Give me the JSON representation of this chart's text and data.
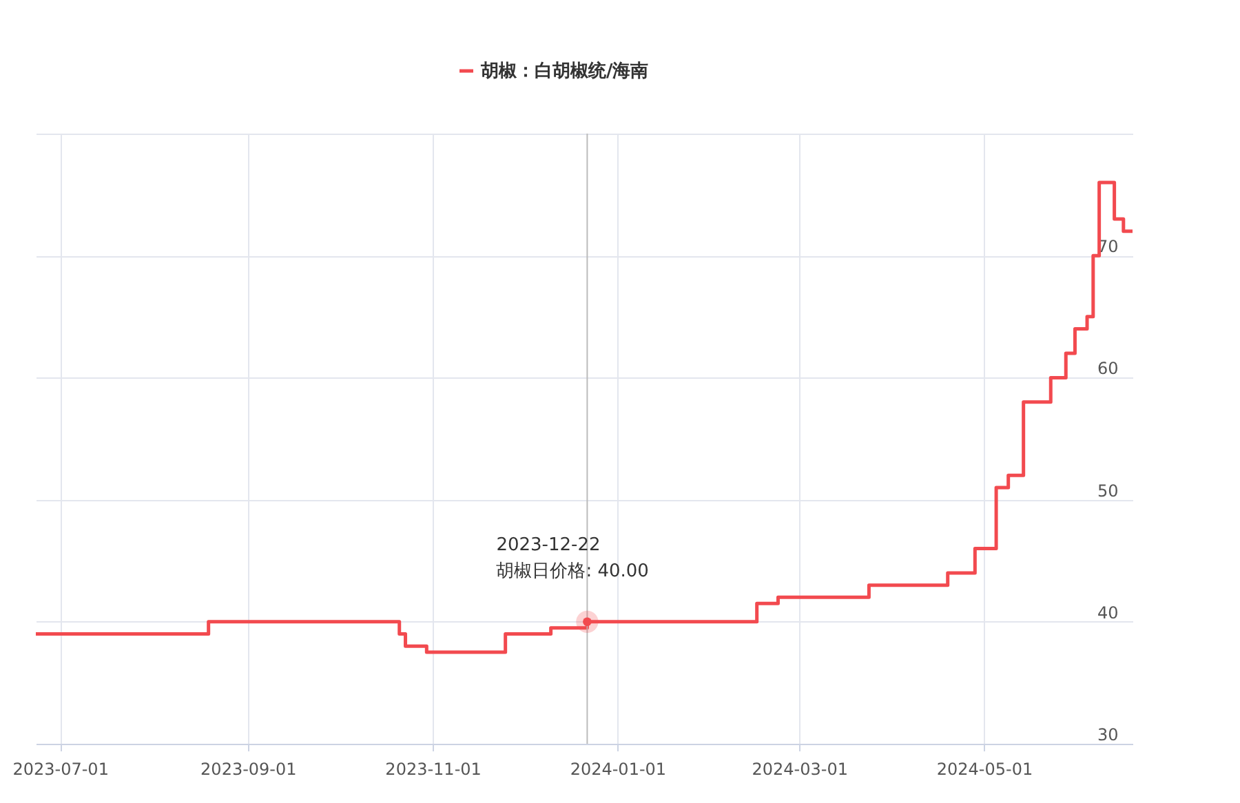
{
  "chart_data": {
    "type": "step",
    "x": [
      "2023-06-23",
      "2023-08-19",
      "2023-10-21",
      "2023-10-23",
      "2023-10-30",
      "2023-11-25",
      "2023-12-10",
      "2023-12-22",
      "2024-02-16",
      "2024-02-23",
      "2024-03-24",
      "2024-04-19",
      "2024-04-28",
      "2024-05-05",
      "2024-05-09",
      "2024-05-14",
      "2024-05-23",
      "2024-05-28",
      "2024-05-31",
      "2024-06-04",
      "2024-06-06",
      "2024-06-08",
      "2024-06-13",
      "2024-06-16",
      "2024-06-19"
    ],
    "series": [
      {
        "name": "胡椒：白胡椒统/海南",
        "color": "#f24a4f",
        "values": [
          39,
          40,
          39,
          38,
          37.5,
          39,
          39.5,
          40,
          41.5,
          42,
          43,
          44,
          46,
          51,
          52,
          58,
          60,
          62,
          64,
          65,
          70,
          76,
          73,
          72,
          72
        ]
      }
    ],
    "xlim": [
      "2023-06-23",
      "2024-06-19"
    ],
    "xticks": [
      "2023-07-01",
      "2023-09-01",
      "2023-11-01",
      "2024-01-01",
      "2024-03-01",
      "2024-05-01"
    ],
    "ylim": [
      30,
      80
    ],
    "yticks": [
      30,
      40,
      50,
      60,
      70,
      {
        "value": 80,
        "label": null
      }
    ],
    "grid": true,
    "legend": "top",
    "ref_lines": [
      {
        "axis": "x",
        "value": "2023-12-22",
        "color": "#bbbbbb"
      }
    ],
    "annotations": [
      {
        "text": "2023-12-22\n胡椒日价格:    40.00",
        "x": "2023-12-22",
        "y": 40
      }
    ]
  }
}
